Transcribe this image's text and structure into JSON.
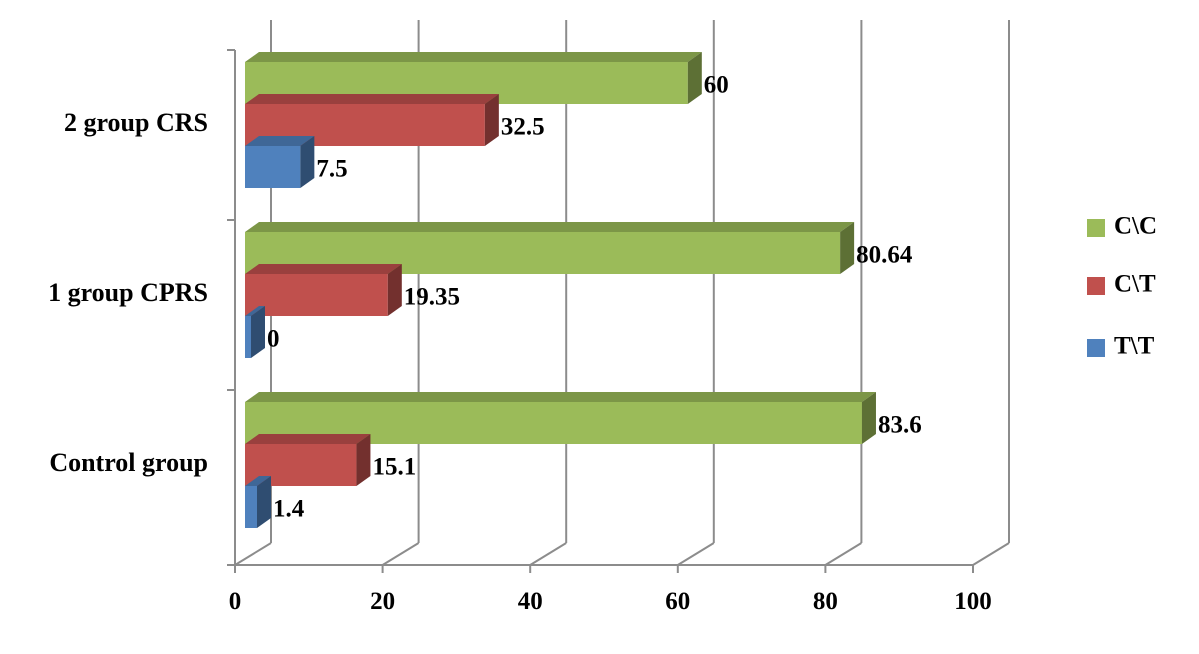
{
  "chart_data": {
    "type": "bar",
    "orientation": "horizontal",
    "style": "3d-clustered",
    "categories": [
      "Control group",
      "1 group CPRS",
      "2 group CRS"
    ],
    "series": [
      {
        "name": "T\\T",
        "color": "#4f81bd",
        "values": [
          1.4,
          0,
          7.5
        ],
        "labels": [
          "1.4",
          "0",
          "7.5"
        ]
      },
      {
        "name": "C\\T",
        "color": "#c0504d",
        "values": [
          15.1,
          19.35,
          32.5
        ],
        "labels": [
          "15.1",
          "19.35",
          "32.5"
        ]
      },
      {
        "name": "C\\C",
        "color": "#9bbb59",
        "values": [
          83.6,
          80.64,
          60
        ],
        "labels": [
          "83.6",
          "80.64",
          "60"
        ]
      }
    ],
    "x_ticks": [
      "0",
      "20",
      "40",
      "60",
      "80",
      "100"
    ],
    "xlim": [
      0,
      100
    ],
    "grid": true,
    "legend_position": "right",
    "legend_order": [
      "C\\C",
      "C\\T",
      "T\\T"
    ]
  }
}
